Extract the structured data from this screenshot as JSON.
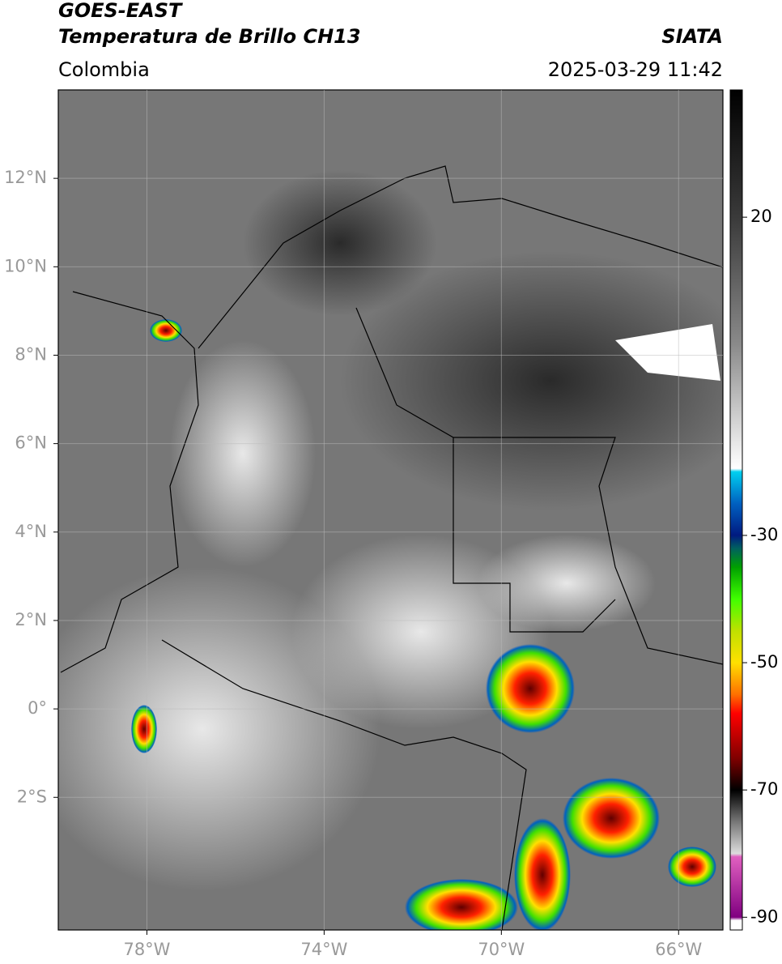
{
  "header": {
    "title": "GOES-EAST",
    "subtitle": "Temperatura de Brillo CH13",
    "source": "SIATA",
    "region": "Colombia",
    "datetime": "2025-03-29 11:42"
  },
  "map": {
    "xlim": [
      -80,
      -65
    ],
    "ylim": [
      -5,
      14
    ],
    "xticks": [
      {
        "value": -78,
        "label": "78°W"
      },
      {
        "value": -74,
        "label": "74°W"
      },
      {
        "value": -70,
        "label": "70°W"
      },
      {
        "value": -66,
        "label": "66°W"
      }
    ],
    "yticks": [
      {
        "value": 12,
        "label": "12°N"
      },
      {
        "value": 10,
        "label": "10°N"
      },
      {
        "value": 8,
        "label": "8°N"
      },
      {
        "value": 6,
        "label": "6°N"
      },
      {
        "value": 4,
        "label": "4°N"
      },
      {
        "value": 2,
        "label": "2°N"
      },
      {
        "value": 0,
        "label": "0°"
      },
      {
        "value": -2,
        "label": "2°S"
      }
    ],
    "grid": true
  },
  "colorbar": {
    "lim": [
      -92,
      40
    ],
    "ticks": [
      20,
      -30,
      -50,
      -70,
      -90
    ],
    "colormap": [
      {
        "value": 40,
        "color": "#000000"
      },
      {
        "value": 20,
        "color": "#3a3a3a"
      },
      {
        "value": 0,
        "color": "#8a8a8a"
      },
      {
        "value": -19.5,
        "color": "#ffffff"
      },
      {
        "value": -20,
        "color": "#00d0f0"
      },
      {
        "value": -25,
        "color": "#0060c0"
      },
      {
        "value": -30,
        "color": "#001a80"
      },
      {
        "value": -32,
        "color": "#006060"
      },
      {
        "value": -35,
        "color": "#00a000"
      },
      {
        "value": -40,
        "color": "#40ff00"
      },
      {
        "value": -45,
        "color": "#c0e000"
      },
      {
        "value": -50,
        "color": "#ffe000"
      },
      {
        "value": -55,
        "color": "#ff7000"
      },
      {
        "value": -58,
        "color": "#ff0000"
      },
      {
        "value": -65,
        "color": "#800000"
      },
      {
        "value": -70,
        "color": "#000000"
      },
      {
        "value": -75,
        "color": "#777777"
      },
      {
        "value": -80,
        "color": "#dddddd"
      },
      {
        "value": -80.5,
        "color": "#e060c0"
      },
      {
        "value": -90,
        "color": "#800080"
      },
      {
        "value": -90.5,
        "color": "#ffffff"
      },
      {
        "value": -92,
        "color": "#ffffff"
      }
    ]
  }
}
